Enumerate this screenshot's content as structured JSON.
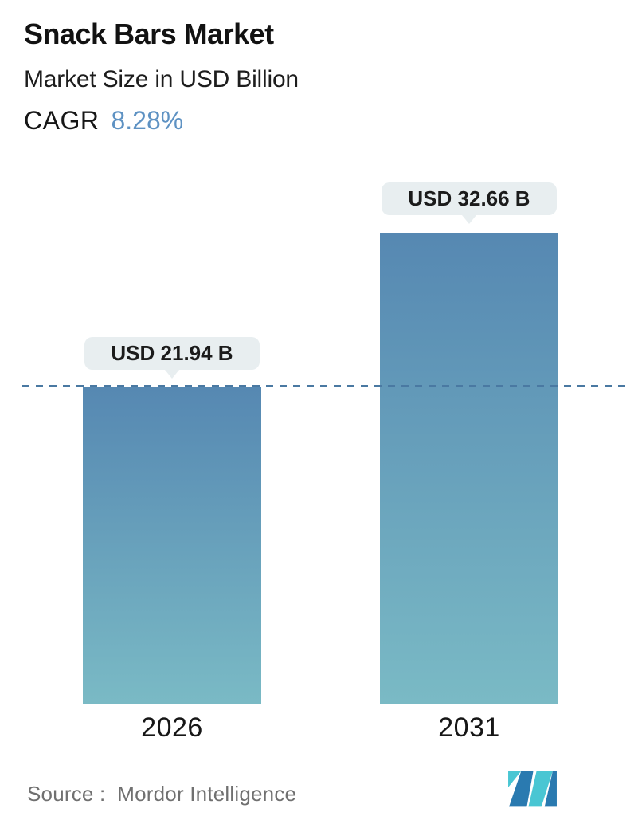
{
  "header": {
    "title": "Snack Bars Market",
    "subtitle": "Market Size in USD Billion",
    "cagr_label": "CAGR",
    "cagr_value": "8.28%"
  },
  "chart_data": {
    "type": "bar",
    "title": "Snack Bars Market",
    "subtitle": "Market Size in USD Billion",
    "cagr_percent": 8.28,
    "unit": "USD Billion",
    "categories": [
      "2026",
      "2031"
    ],
    "values": [
      21.94,
      32.66
    ],
    "value_labels": [
      "USD 21.94 B",
      "USD 32.66 B"
    ],
    "reference_line": {
      "style": "dashed",
      "value": 21.94,
      "note": "horizontal dashed line at 2026 bar top spanning full chart width"
    },
    "xlabel": "",
    "ylabel": "Market Size in USD Billion",
    "ylim": [
      0,
      40
    ],
    "grid": "off",
    "legend": "none",
    "axes_shown": false
  },
  "footer": {
    "source_label": "Source :  Mordor Intelligence",
    "logo_name": "mordor-intelligence-logo"
  },
  "colors": {
    "accent_blue": "#5E92C3",
    "bar_top": "#5688B2",
    "bar_bottom": "#7ABAC5",
    "badge_bg": "#E8EEF0",
    "dash_line": "#4A79A2",
    "source_text": "#707070",
    "logo_teal": "#49C6D3",
    "logo_blue": "#2A7AB0"
  }
}
